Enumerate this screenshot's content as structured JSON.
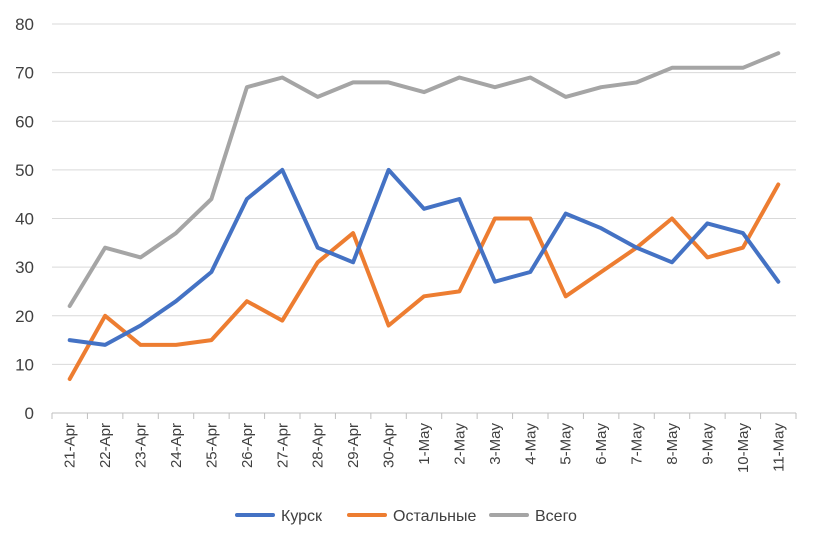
{
  "chart_data": {
    "type": "line",
    "title": "",
    "xlabel": "",
    "ylabel": "",
    "categories": [
      "21-Apr",
      "22-Apr",
      "23-Apr",
      "24-Apr",
      "25-Apr",
      "26-Apr",
      "27-Apr",
      "28-Apr",
      "29-Apr",
      "30-Apr",
      "1-May",
      "2-May",
      "3-May",
      "4-May",
      "5-May",
      "6-May",
      "7-May",
      "8-May",
      "9-May",
      "10-May",
      "11-May"
    ],
    "ylim": [
      0,
      80
    ],
    "yticks": [
      0,
      10,
      20,
      30,
      40,
      50,
      60,
      70,
      80
    ],
    "grid": true,
    "legend": "bottom",
    "series": [
      {
        "name": "Курск",
        "color": "#4472C4",
        "values": [
          15,
          14,
          18,
          23,
          29,
          44,
          50,
          34,
          31,
          50,
          42,
          44,
          27,
          29,
          41,
          38,
          34,
          31,
          39,
          37,
          27
        ]
      },
      {
        "name": "Остальные",
        "color": "#ED7D31",
        "values": [
          7,
          20,
          14,
          14,
          15,
          23,
          19,
          31,
          37,
          18,
          24,
          25,
          40,
          40,
          24,
          29,
          34,
          40,
          32,
          34,
          47
        ]
      },
      {
        "name": "Всего",
        "color": "#A5A5A5",
        "values": [
          22,
          34,
          32,
          37,
          44,
          67,
          69,
          65,
          68,
          68,
          66,
          69,
          67,
          69,
          65,
          67,
          68,
          71,
          71,
          71,
          74
        ]
      }
    ]
  }
}
